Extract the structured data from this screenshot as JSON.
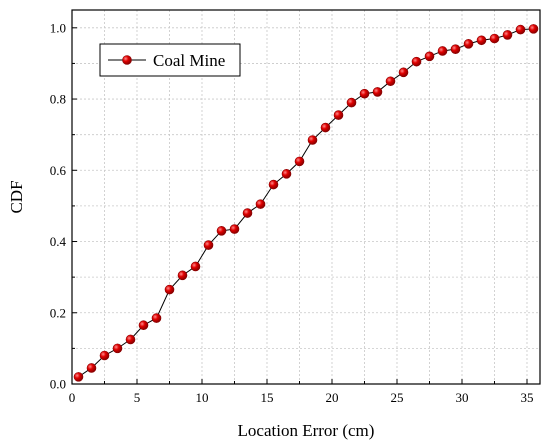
{
  "chart_data": {
    "type": "line",
    "xlabel": "Location Error (cm)",
    "ylabel": "CDF",
    "xlim": [
      0,
      36
    ],
    "ylim": [
      0,
      1.05
    ],
    "xticks": [
      0,
      5,
      10,
      15,
      20,
      25,
      30,
      35
    ],
    "yticks": [
      0.0,
      0.2,
      0.4,
      0.6,
      0.8,
      1.0
    ],
    "xtick_labels": [
      "0",
      "5",
      "10",
      "15",
      "20",
      "25",
      "30",
      "35"
    ],
    "ytick_labels": [
      "0.0",
      "0.2",
      "0.4",
      "0.6",
      "0.8",
      "1.0"
    ],
    "grid": true,
    "legend": "top-left",
    "series": [
      {
        "name": "Coal Mine",
        "color": "#e00000",
        "line_color": "#000000",
        "marker": "circle",
        "x": [
          0.5,
          1.5,
          2.5,
          3.5,
          4.5,
          5.5,
          6.5,
          7.5,
          8.5,
          9.5,
          10.5,
          11.5,
          12.5,
          13.5,
          14.5,
          15.5,
          16.5,
          17.5,
          18.5,
          19.5,
          20.5,
          21.5,
          22.5,
          23.5,
          24.5,
          25.5,
          26.5,
          27.5,
          28.5,
          29.5,
          30.5,
          31.5,
          32.5,
          33.5,
          34.5,
          35.5
        ],
        "y": [
          0.02,
          0.045,
          0.08,
          0.1,
          0.125,
          0.165,
          0.185,
          0.265,
          0.305,
          0.33,
          0.39,
          0.43,
          0.435,
          0.48,
          0.505,
          0.56,
          0.59,
          0.625,
          0.685,
          0.72,
          0.755,
          0.79,
          0.815,
          0.82,
          0.85,
          0.875,
          0.905,
          0.92,
          0.935,
          0.94,
          0.955,
          0.965,
          0.97,
          0.98,
          0.995,
          0.997
        ]
      }
    ]
  }
}
